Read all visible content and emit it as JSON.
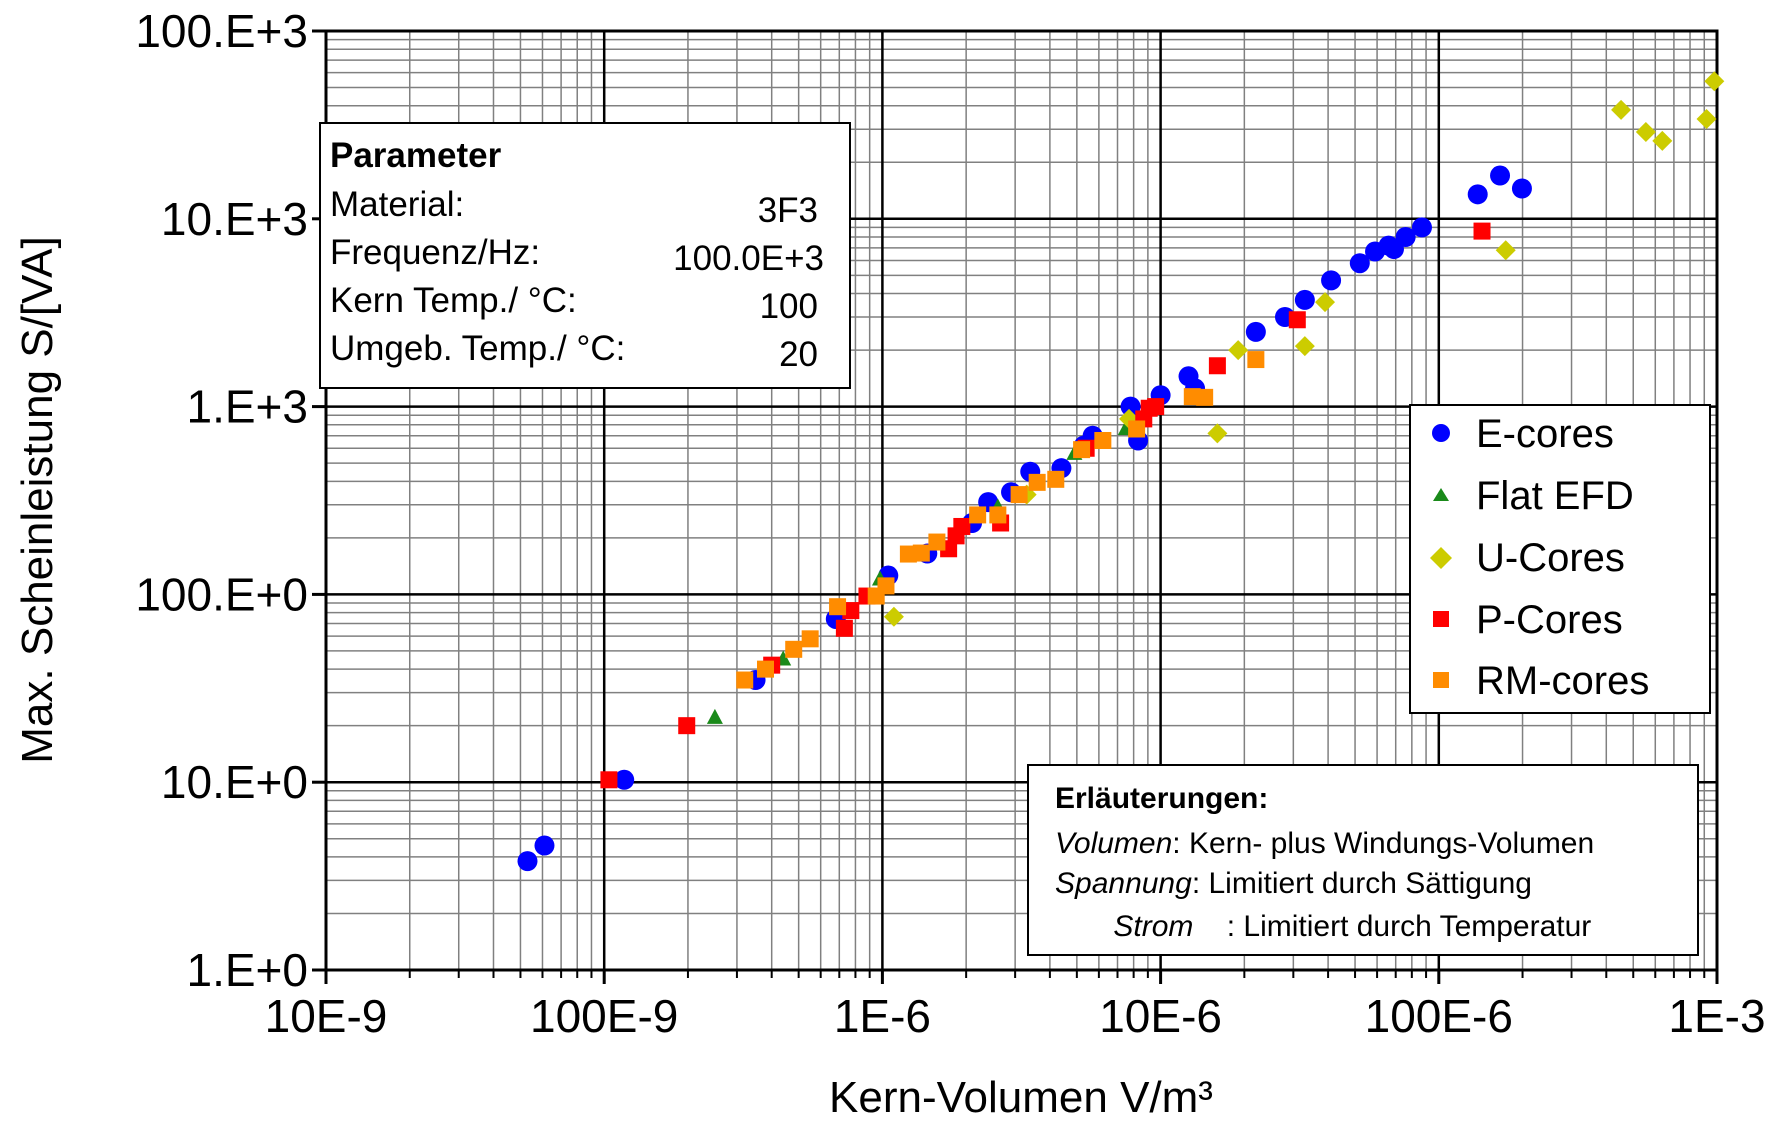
{
  "chart_data": {
    "type": "scatter",
    "title": "",
    "xlabel": "Kern-Volumen V/m³",
    "ylabel": "Max. Scheinleistung S/[VA]",
    "x_scale": "log",
    "y_scale": "log",
    "xlim": [
      1e-08,
      0.001
    ],
    "ylim": [
      1,
      100000
    ],
    "grid": true,
    "legend_position": "right",
    "x_tick_labels": [
      "10E-9",
      "100E-9",
      "1E-6",
      "10E-6",
      "100E-6",
      "1E-3"
    ],
    "y_tick_labels": [
      "1.E+0",
      "10.E+0",
      "100.E+0",
      "1.E+3",
      "10.E+3",
      "100.E+3"
    ],
    "series": [
      {
        "name": "E-cores",
        "marker": "circle",
        "color": "#0000ff",
        "points": [
          [
            5.3e-08,
            3.8
          ],
          [
            6.1e-08,
            4.6
          ],
          [
            1.18e-07,
            10.3
          ],
          [
            3.5e-07,
            35
          ],
          [
            6.8e-07,
            74
          ],
          [
            1.05e-06,
            126
          ],
          [
            1.45e-06,
            165
          ],
          [
            2.1e-06,
            240
          ],
          [
            2.4e-06,
            310
          ],
          [
            2.9e-06,
            350
          ],
          [
            3.4e-06,
            450
          ],
          [
            4.4e-06,
            470
          ],
          [
            5.3e-06,
            620
          ],
          [
            5.7e-06,
            700
          ],
          [
            7.8e-06,
            1000
          ],
          [
            8.3e-06,
            660
          ],
          [
            1e-05,
            1150
          ],
          [
            1.26e-05,
            1450
          ],
          [
            1.33e-05,
            1250
          ],
          [
            2.2e-05,
            2500
          ],
          [
            2.8e-05,
            3000
          ],
          [
            3.3e-05,
            3700
          ],
          [
            4.1e-05,
            4700
          ],
          [
            5.2e-05,
            5800
          ],
          [
            5.9e-05,
            6700
          ],
          [
            6.6e-05,
            7200
          ],
          [
            6.9e-05,
            6900
          ],
          [
            7.6e-05,
            8000
          ],
          [
            8.7e-05,
            9000
          ],
          [
            0.000138,
            13500
          ],
          [
            0.000166,
            17000
          ],
          [
            0.000199,
            14500
          ]
        ]
      },
      {
        "name": "Flat EFD",
        "marker": "triangle",
        "color": "#1a8a1a",
        "points": [
          [
            2.5e-07,
            22
          ],
          [
            4.4e-07,
            45
          ],
          [
            9.8e-07,
            120
          ],
          [
            2.6e-06,
            290
          ],
          [
            4.9e-06,
            560
          ],
          [
            7.5e-06,
            760
          ]
        ]
      },
      {
        "name": "U-Cores",
        "marker": "diamond",
        "color": "#cccc00",
        "points": [
          [
            1.1e-06,
            76
          ],
          [
            3.3e-06,
            340
          ],
          [
            7.7e-06,
            860
          ],
          [
            1.6e-05,
            720
          ],
          [
            1.9e-05,
            2000
          ],
          [
            3.3e-05,
            2100
          ],
          [
            3.9e-05,
            3600
          ],
          [
            0.000174,
            6800
          ],
          [
            0.000452,
            38000
          ],
          [
            0.000555,
            29000
          ],
          [
            0.000636,
            26000
          ],
          [
            0.000917,
            34000
          ],
          [
            0.000978,
            54000
          ]
        ]
      },
      {
        "name": "P-Cores",
        "marker": "square",
        "color": "#ff0000",
        "points": [
          [
            1.04e-07,
            10.3
          ],
          [
            1.98e-07,
            20
          ],
          [
            4e-07,
            42
          ],
          [
            7.3e-07,
            66
          ],
          [
            7.7e-07,
            82
          ],
          [
            8.8e-07,
            98
          ],
          [
            1.73e-06,
            175
          ],
          [
            1.84e-06,
            205
          ],
          [
            1.93e-06,
            230
          ],
          [
            2.66e-06,
            240
          ],
          [
            5.4e-06,
            600
          ],
          [
            8.7e-06,
            860
          ],
          [
            9.1e-06,
            980
          ],
          [
            9.6e-06,
            1000
          ],
          [
            1.6e-05,
            1650
          ],
          [
            3.1e-05,
            2900
          ],
          [
            0.000143,
            8600
          ]
        ]
      },
      {
        "name": "RM-cores",
        "marker": "square",
        "color": "#ff8c00",
        "points": [
          [
            3.2e-07,
            35
          ],
          [
            3.8e-07,
            40
          ],
          [
            4.8e-07,
            51
          ],
          [
            5.5e-07,
            58
          ],
          [
            6.9e-07,
            86
          ],
          [
            9.5e-07,
            98
          ],
          [
            1.03e-06,
            111
          ],
          [
            1.24e-06,
            164
          ],
          [
            1.38e-06,
            166
          ],
          [
            1.57e-06,
            190
          ],
          [
            2.2e-06,
            265
          ],
          [
            2.6e-06,
            265
          ],
          [
            3.1e-06,
            340
          ],
          [
            3.6e-06,
            395
          ],
          [
            4.2e-06,
            410
          ],
          [
            5.2e-06,
            590
          ],
          [
            6.2e-06,
            660
          ],
          [
            8.2e-06,
            760
          ],
          [
            1.3e-05,
            1130
          ],
          [
            1.44e-05,
            1120
          ],
          [
            2.2e-05,
            1780
          ]
        ]
      }
    ]
  },
  "parameter_box": {
    "heading": "Parameter",
    "rows": [
      {
        "label": "Material:",
        "value": "3F3"
      },
      {
        "label": "Frequenz/Hz:",
        "value": "100.0E+3"
      },
      {
        "label": "Kern Temp./ °C:",
        "value": "100"
      },
      {
        "label": "Umgeb. Temp./ °C:",
        "value": "20"
      }
    ]
  },
  "notes_box": {
    "heading": "Erläuterungen:",
    "lines": [
      {
        "term": "Volumen",
        "text": ": Kern- plus Windungs-Volumen"
      },
      {
        "term": "Spannung",
        "text": ": Limitiert durch Sättigung"
      },
      {
        "term": "Strom",
        "text": "    : Limitiert durch Temperatur"
      }
    ]
  }
}
